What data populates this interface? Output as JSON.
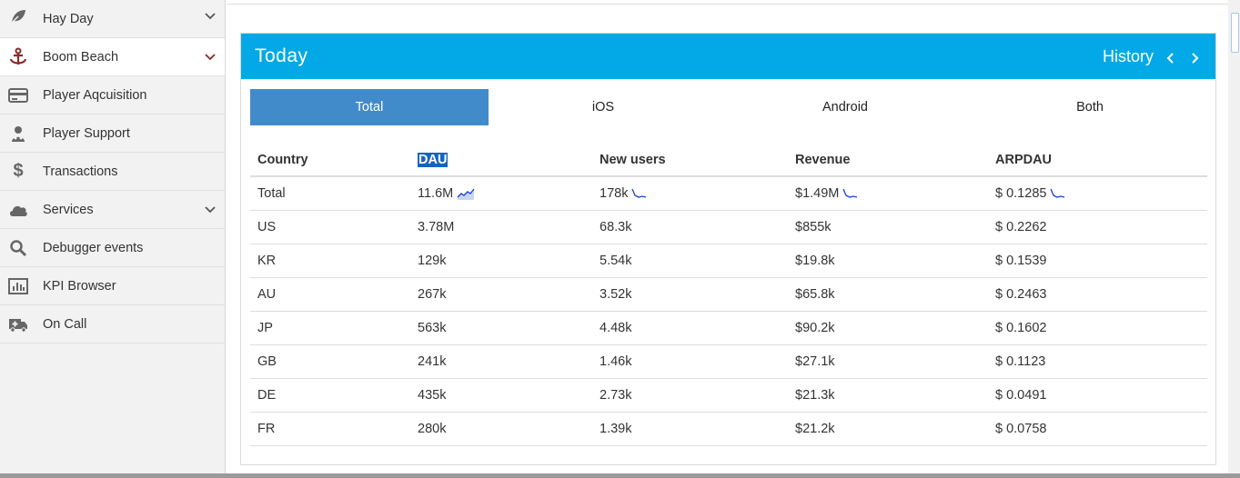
{
  "sidebar": {
    "items": [
      {
        "label": "Hay Day",
        "icon": "leaf-icon",
        "chevron": true
      },
      {
        "label": "Boom Beach",
        "icon": "anchor-icon",
        "chevron": true
      },
      {
        "label": "Player Aqcuisition",
        "icon": "credit-card-icon",
        "chevron": false
      },
      {
        "label": "Player Support",
        "icon": "user-support-icon",
        "chevron": false
      },
      {
        "label": "Transactions",
        "icon": "dollar-icon",
        "chevron": false
      },
      {
        "label": "Services",
        "icon": "cloud-icon",
        "chevron": true
      },
      {
        "label": "Debugger events",
        "icon": "search-icon",
        "chevron": false
      },
      {
        "label": "KPI Browser",
        "icon": "bar-chart-icon",
        "chevron": false
      },
      {
        "label": "On Call",
        "icon": "ambulance-icon",
        "chevron": false
      }
    ]
  },
  "panel": {
    "title": "Today",
    "history_label": "History"
  },
  "tabs": [
    "Total",
    "iOS",
    "Android",
    "Both"
  ],
  "table": {
    "headers": [
      "Country",
      "DAU",
      "New users",
      "Revenue",
      "ARPDAU"
    ],
    "rows": [
      [
        "Total",
        "11.6M",
        "178k",
        "$1.49M",
        "$ 0.1285"
      ],
      [
        "US",
        "3.78M",
        "68.3k",
        "$855k",
        "$ 0.2262"
      ],
      [
        "KR",
        "129k",
        "5.54k",
        "$19.8k",
        "$ 0.1539"
      ],
      [
        "AU",
        "267k",
        "3.52k",
        "$65.8k",
        "$ 0.2463"
      ],
      [
        "JP",
        "563k",
        "4.48k",
        "$90.2k",
        "$ 0.1602"
      ],
      [
        "GB",
        "241k",
        "1.46k",
        "$27.1k",
        "$ 0.1123"
      ],
      [
        "DE",
        "435k",
        "2.73k",
        "$21.3k",
        "$ 0.0491"
      ],
      [
        "FR",
        "280k",
        "1.39k",
        "$21.2k",
        "$ 0.0758"
      ]
    ]
  },
  "colors": {
    "header_bg": "#03a9e6",
    "active_tab": "#428bca",
    "boom_beach_icon": "#8b2b2b",
    "sparkline": "#1a3fd1"
  }
}
